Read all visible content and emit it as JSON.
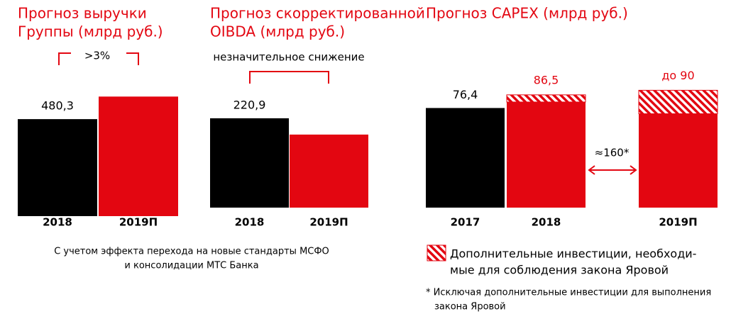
{
  "chart_data": [
    {
      "type": "bar",
      "title": [
        "Прогноз выручки",
        "Группы (млрд руб.)"
      ],
      "categories": [
        "2018",
        "2019П"
      ],
      "values": [
        480.3,
        592
      ],
      "value_labels": [
        "480,3",
        null
      ],
      "colors": [
        "#000000",
        "#e30611"
      ],
      "ylim": [
        0,
        600
      ],
      "annotation": ">3%"
    },
    {
      "type": "bar",
      "title": [
        "Прогноз скорректированной",
        "OIBDA (млрд руб.)"
      ],
      "categories": [
        "2018",
        "2019П"
      ],
      "values": [
        220.9,
        180.6
      ],
      "value_labels": [
        "220,9",
        null
      ],
      "colors": [
        "#000000",
        "#e30611"
      ],
      "ylim": [
        0,
        240
      ],
      "annotation": "незначительное снижение"
    },
    {
      "type": "stacked_bar",
      "title": [
        "Прогноз CAPEX (млрд руб.)"
      ],
      "categories": [
        "2017",
        "2018",
        "2019П"
      ],
      "series": [
        {
          "values": [
            76.4,
            81,
            72
          ],
          "value_labels": [
            "76,4",
            null,
            null
          ],
          "colors": [
            "#000000",
            "#e30611",
            "#e30611"
          ]
        },
        {
          "name": [
            "Дополнительные инвестиции, необходи-",
            "мые для соблюдения закона Яровой"
          ],
          "color": "#e30611",
          "values": [
            null,
            5.5,
            18
          ]
        }
      ],
      "total_labels": [
        {
          "category": 1,
          "text": "86,5"
        },
        {
          "category": 2,
          "text": "до 90"
        }
      ],
      "ylim": [
        0,
        100
      ],
      "annotation": "≈160*"
    }
  ],
  "note": [
    "С учетом эффекта перехода на новые стандарты МСФО",
    "и консолидации МТС Банка"
  ],
  "footnote": [
    "* Исключая дополнительные инвестиции для выполнения",
    "закона Яровой"
  ]
}
